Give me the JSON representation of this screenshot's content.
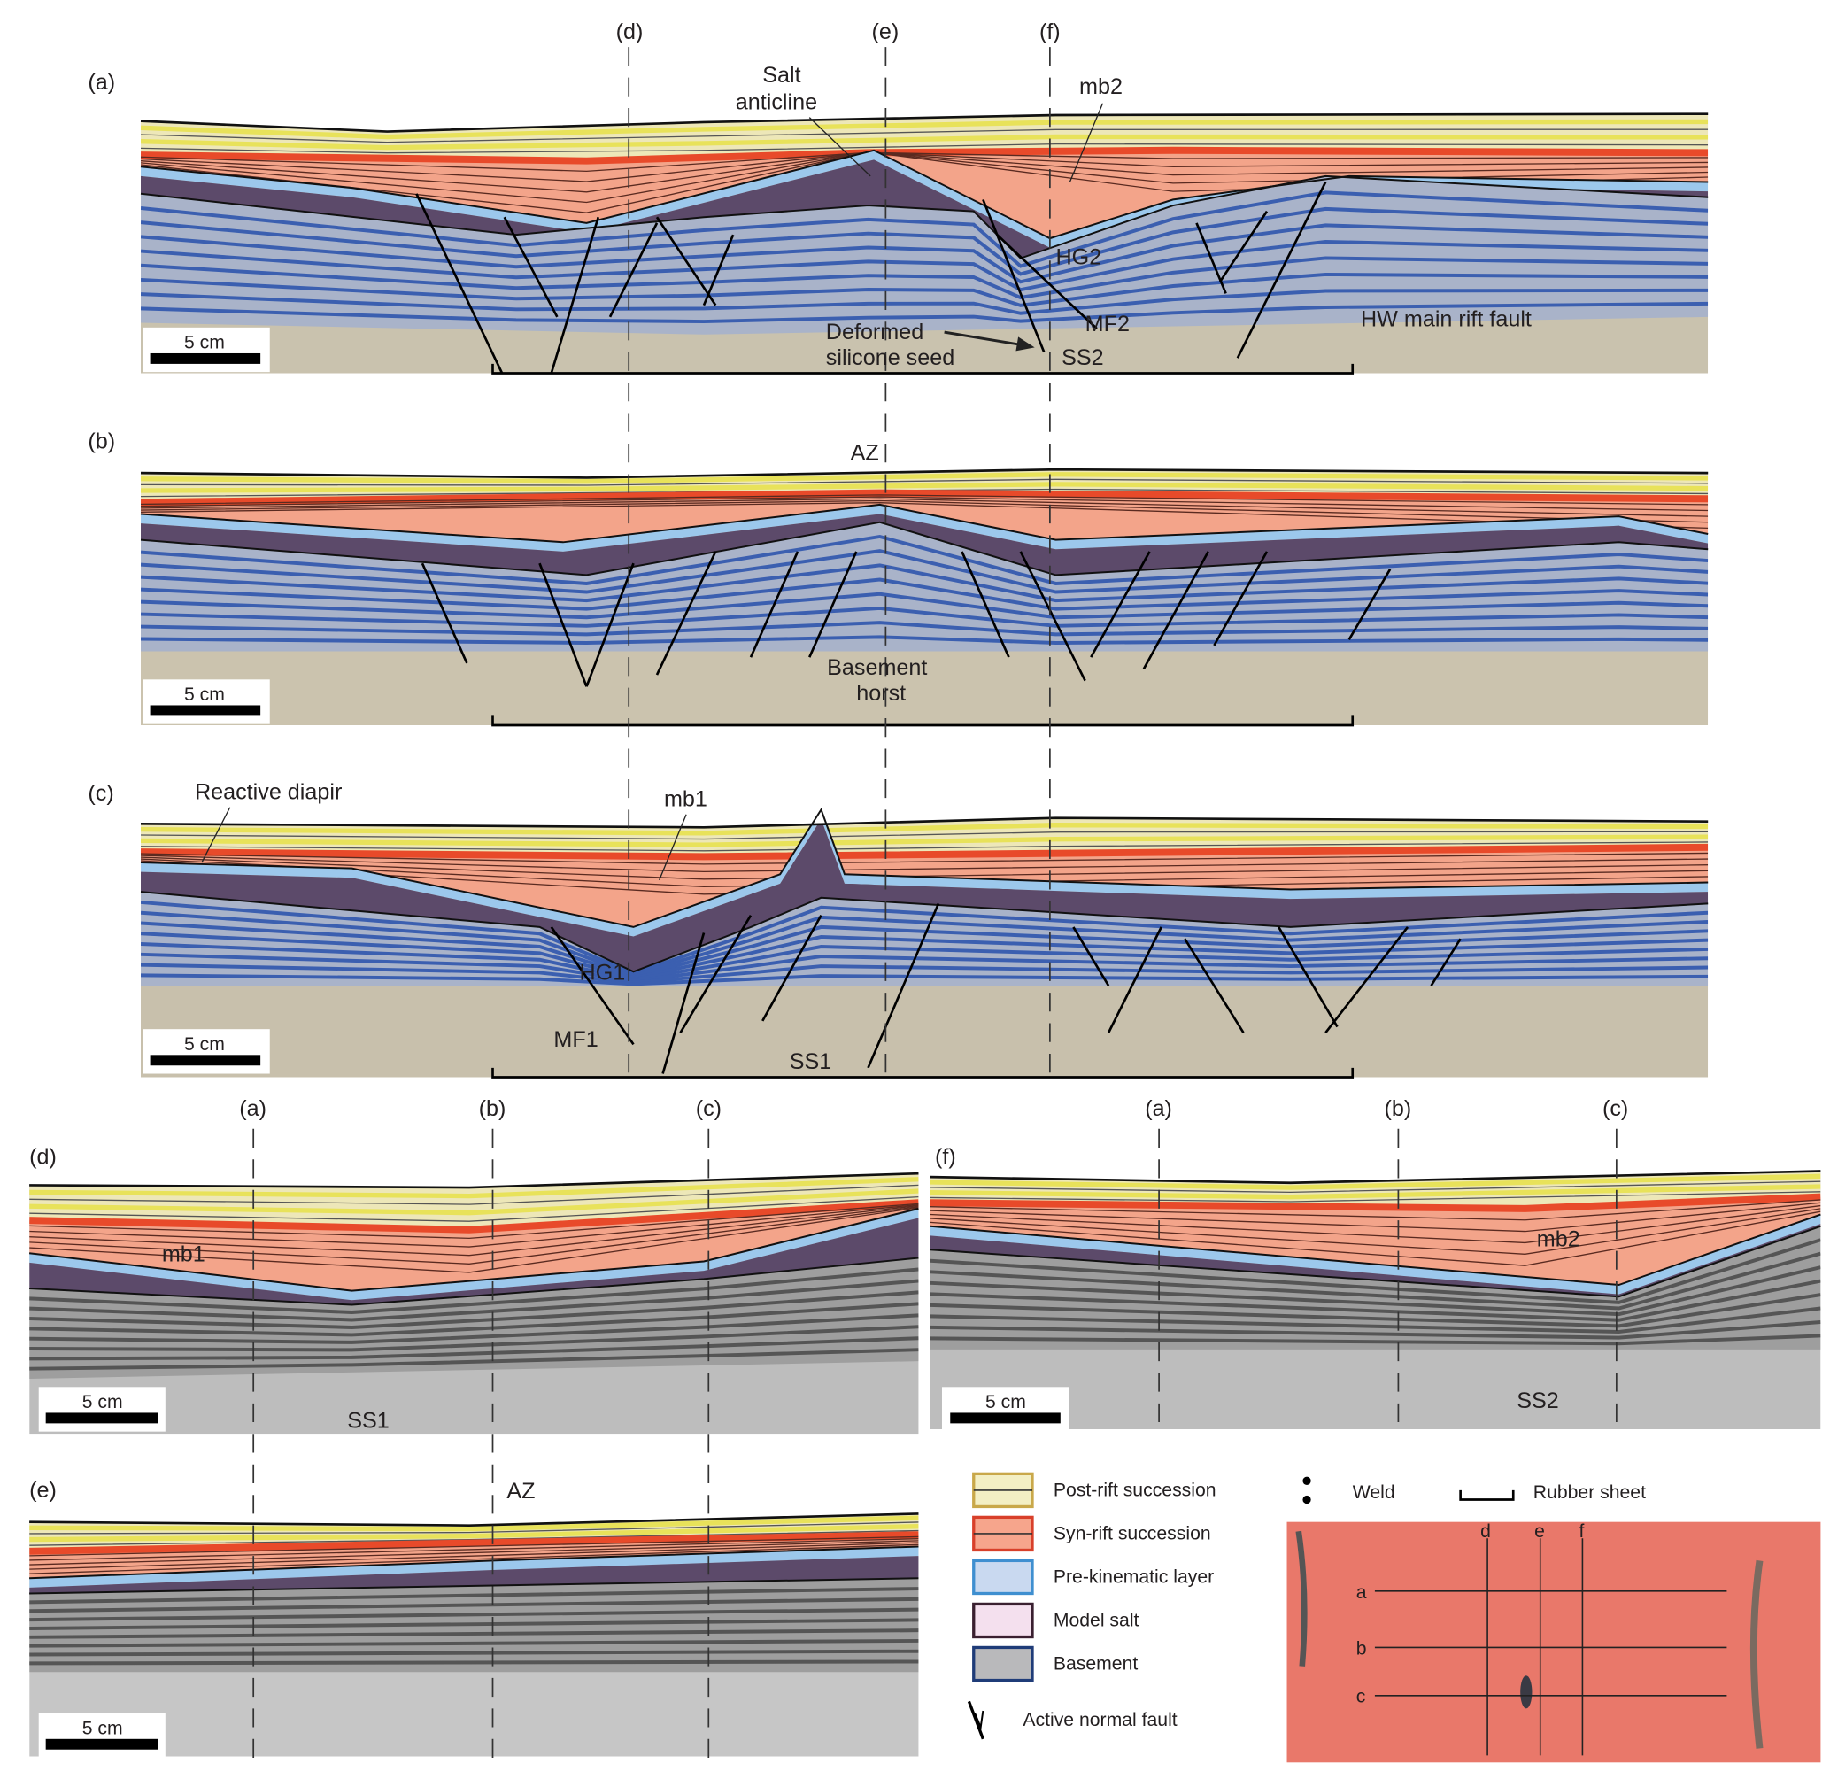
{
  "panels": {
    "a": {
      "tag": "(a)",
      "scale": "5 cm",
      "labels": {
        "salt1": "Salt",
        "salt2": "anticline",
        "mb2": "mb2",
        "hg2": "HG2",
        "mf2": "MF2",
        "def1": "Deformed",
        "def2": "silicone seed",
        "ss2": "SS2",
        "hw": "HW main rift fault"
      }
    },
    "b": {
      "tag": "(b)",
      "scale": "5 cm",
      "labels": {
        "az": "AZ",
        "bh1": "Basement",
        "bh2": "horst"
      }
    },
    "c": {
      "tag": "(c)",
      "scale": "5 cm",
      "labels": {
        "rd": "Reactive diapir",
        "mb1": "mb1",
        "hg1": "HG1",
        "mf1": "MF1",
        "ss1": "SS1"
      }
    },
    "d": {
      "tag": "(d)",
      "scale": "5 cm",
      "labels": {
        "mb1": "mb1",
        "ss1": "SS1"
      }
    },
    "e": {
      "tag": "(e)",
      "scale": "5 cm",
      "labels": {
        "az": "AZ"
      }
    },
    "f": {
      "tag": "(f)",
      "scale": "5 cm",
      "labels": {
        "mb2": "mb2",
        "ss2": "SS2"
      }
    }
  },
  "section_markers_top": [
    "(d)",
    "(e)",
    "(f)"
  ],
  "section_markers_lower": [
    "(a)",
    "(b)",
    "(c)"
  ],
  "legend": {
    "items": [
      {
        "label": "Post-rift succession",
        "color": "#f3efc4",
        "border": "#c9a84a"
      },
      {
        "label": "Syn-rift succession",
        "color": "#f6a58c",
        "border": "#d8402a"
      },
      {
        "label": "Pre-kinematic layer",
        "color": "#c9d9f0",
        "border": "#3f8fd0"
      },
      {
        "label": "Model salt",
        "color": "#f4e0ee",
        "border": "#3a2030"
      },
      {
        "label": "Basement",
        "color": "#b9b9bb",
        "border": "#1f3c78"
      }
    ],
    "weld": "Weld",
    "rubber": "Rubber sheet",
    "fault": "Active normal fault"
  },
  "map": {
    "cols": [
      "d",
      "e",
      "f"
    ],
    "rows": [
      "a",
      "b",
      "c"
    ],
    "color": "#e9786a"
  }
}
